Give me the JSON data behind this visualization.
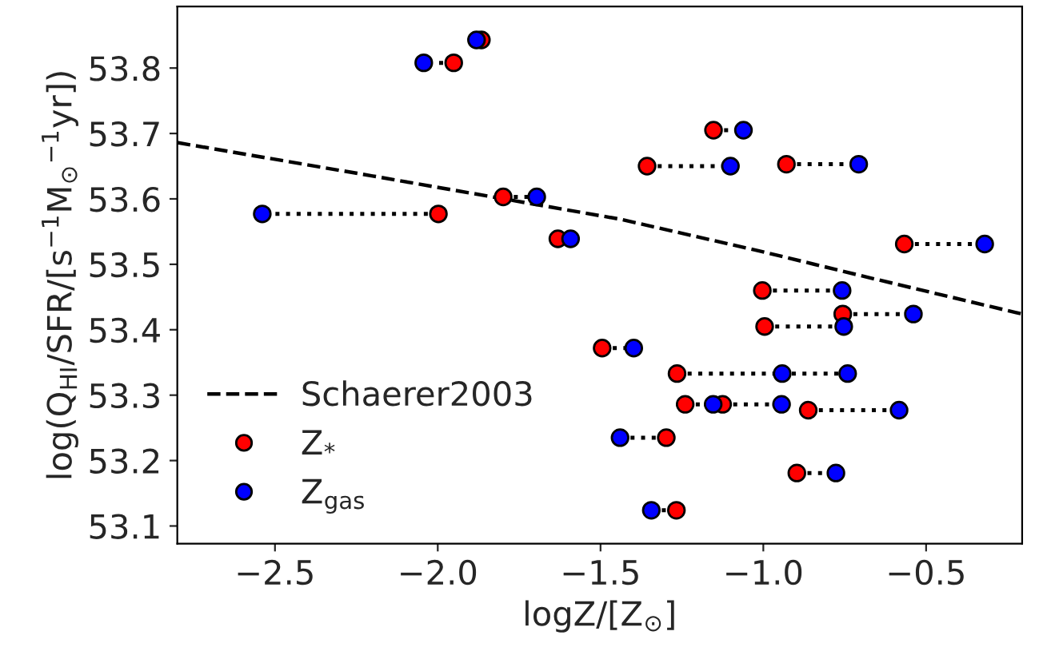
{
  "chart_data": {
    "type": "scatter",
    "xlabel": "logZ/[Z$_{⊙}$]",
    "ylabel": "log(Q$_{HI}$/SFR/[s$^{−1}$M$_{⊙}$$^{−1}$yr])",
    "xlim": [
      -2.8,
      -0.205
    ],
    "ylim": [
      53.073,
      53.894
    ],
    "xticks": [
      {
        "value": -2.5,
        "label": "−2.5"
      },
      {
        "value": -2.0,
        "label": "−2.0"
      },
      {
        "value": -1.5,
        "label": "−1.5"
      },
      {
        "value": -1.0,
        "label": "−1.0"
      },
      {
        "value": -0.5,
        "label": "−0.5"
      }
    ],
    "yticks": [
      53.1,
      53.2,
      53.3,
      53.4,
      53.5,
      53.6,
      53.7,
      53.8
    ],
    "legend": "bottom left",
    "marker": "circle",
    "series": [
      {
        "name": "Schaerer2003",
        "type": "line",
        "color": "#000000",
        "line_style": "dashed",
        "marker": "none",
        "x": [
          -2.8,
          -2.2,
          -1.44,
          -1.0,
          -0.67,
          -0.205
        ],
        "values": [
          53.686,
          53.635,
          53.569,
          53.519,
          53.479,
          53.424
        ]
      },
      {
        "type": "line",
        "color": "#000000",
        "line_style": "dotted",
        "marker": "none",
        "x": [
          -1.951,
          -2.043
        ],
        "values": [
          53.808,
          53.808
        ]
      },
      {
        "type": "line",
        "color": "#000000",
        "line_style": "dotted",
        "marker": "none",
        "x": [
          -1.799,
          -1.696
        ],
        "values": [
          53.603,
          53.603
        ]
      },
      {
        "type": "line",
        "color": "#000000",
        "line_style": "dotted",
        "marker": "none",
        "x": [
          -1.998,
          -2.539
        ],
        "values": [
          53.577,
          53.577
        ]
      },
      {
        "type": "line",
        "color": "#000000",
        "line_style": "dotted",
        "marker": "none",
        "x": [
          -1.153,
          -1.061
        ],
        "values": [
          53.705,
          53.705
        ]
      },
      {
        "type": "line",
        "color": "#000000",
        "line_style": "dotted",
        "marker": "none",
        "x": [
          -1.357,
          -1.101
        ],
        "values": [
          53.65,
          53.65
        ]
      },
      {
        "type": "line",
        "color": "#000000",
        "line_style": "dotted",
        "marker": "none",
        "x": [
          -0.929,
          -0.707
        ],
        "values": [
          53.653,
          53.653
        ]
      },
      {
        "type": "line",
        "color": "#000000",
        "line_style": "dotted",
        "marker": "none",
        "x": [
          -0.567,
          -0.32
        ],
        "values": [
          53.531,
          53.531
        ]
      },
      {
        "type": "line",
        "color": "#000000",
        "line_style": "dotted",
        "marker": "none",
        "x": [
          -1.003,
          -0.758
        ],
        "values": [
          53.46,
          53.46
        ]
      },
      {
        "type": "line",
        "color": "#000000",
        "line_style": "dotted",
        "marker": "none",
        "x": [
          -0.756,
          -0.539
        ],
        "values": [
          53.424,
          53.424
        ]
      },
      {
        "type": "line",
        "color": "#000000",
        "line_style": "dotted",
        "marker": "none",
        "x": [
          -0.996,
          -0.753
        ],
        "values": [
          53.405,
          53.405
        ]
      },
      {
        "type": "line",
        "color": "#000000",
        "line_style": "dotted",
        "marker": "none",
        "x": [
          -1.495,
          -1.398
        ],
        "values": [
          53.372,
          53.372
        ]
      },
      {
        "type": "line",
        "color": "#000000",
        "line_style": "dotted",
        "marker": "none",
        "x": [
          -1.265,
          -0.942
        ],
        "values": [
          53.333,
          53.333
        ]
      },
      {
        "type": "line",
        "color": "#000000",
        "line_style": "dotted",
        "marker": "none",
        "x": [
          -0.945,
          -0.741
        ],
        "values": [
          53.333,
          53.333
        ]
      },
      {
        "type": "line",
        "color": "#000000",
        "line_style": "dotted",
        "marker": "none",
        "x": [
          -1.24,
          -1.154
        ],
        "values": [
          53.286,
          53.286
        ]
      },
      {
        "type": "line",
        "color": "#000000",
        "line_style": "dotted",
        "marker": "none",
        "x": [
          -1.125,
          -0.944
        ],
        "values": [
          53.286,
          53.286
        ]
      },
      {
        "type": "line",
        "color": "#000000",
        "line_style": "dotted",
        "marker": "none",
        "x": [
          -0.862,
          -0.583
        ],
        "values": [
          53.277,
          53.277
        ]
      },
      {
        "type": "line",
        "color": "#000000",
        "line_style": "dotted",
        "marker": "none",
        "x": [
          -1.298,
          -1.44
        ],
        "values": [
          53.235,
          53.235
        ]
      },
      {
        "type": "line",
        "color": "#000000",
        "line_style": "dotted",
        "marker": "none",
        "x": [
          -0.897,
          -0.777
        ],
        "values": [
          53.181,
          53.181
        ]
      },
      {
        "type": "line",
        "color": "#000000",
        "line_style": "dotted",
        "marker": "none",
        "x": [
          -1.267,
          -1.344
        ],
        "values": [
          53.124,
          53.124
        ]
      },
      {
        "name": "Z$_{*}$",
        "color": "#ff0000",
        "x": [
          -1.866,
          -1.951,
          -1.799,
          -1.998,
          -1.631,
          -1.153,
          -1.357,
          -0.929,
          -0.567,
          -1.003,
          -0.756,
          -0.996,
          -1.495,
          -1.265,
          null,
          -1.24,
          -1.125,
          -0.862,
          -1.298,
          -0.897,
          -1.267
        ],
        "values": [
          53.843,
          53.808,
          53.603,
          53.577,
          53.539,
          53.705,
          53.65,
          53.653,
          53.531,
          53.46,
          53.424,
          53.405,
          53.372,
          53.333,
          null,
          53.286,
          53.286,
          53.277,
          53.235,
          53.181,
          53.124
        ]
      },
      {
        "name": "Z$_{gas}$",
        "color": "#0000ff",
        "x": [
          -1.881,
          -2.043,
          -1.696,
          -2.539,
          -1.592,
          -1.061,
          -1.101,
          -0.707,
          -0.32,
          -0.758,
          -0.539,
          -0.753,
          -1.398,
          -0.942,
          -0.741,
          -1.154,
          -0.944,
          -0.583,
          -1.44,
          -0.777,
          -1.344
        ],
        "values": [
          53.843,
          53.808,
          53.603,
          53.577,
          53.539,
          53.705,
          53.65,
          53.653,
          53.531,
          53.46,
          53.424,
          53.405,
          53.372,
          53.333,
          53.333,
          53.286,
          53.286,
          53.277,
          53.235,
          53.181,
          53.124
        ]
      }
    ]
  }
}
